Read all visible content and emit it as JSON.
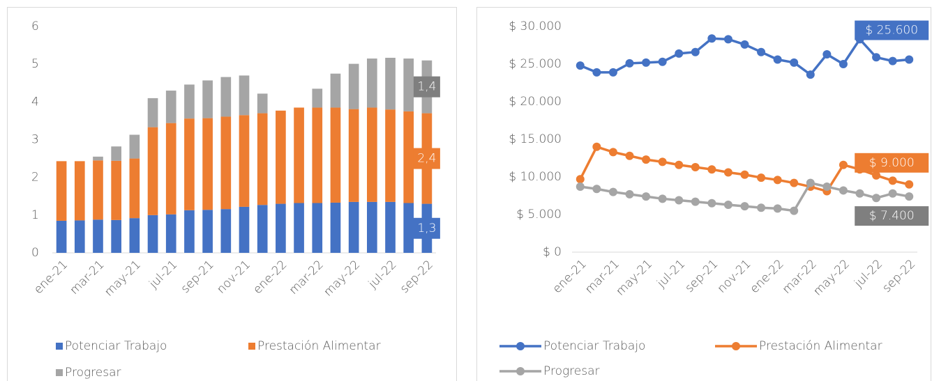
{
  "chart_data": [
    {
      "type": "bar",
      "stacked": true,
      "categories": [
        "ene-21",
        null,
        "mar-21",
        null,
        "may-21",
        null,
        "jul-21",
        null,
        "sep-21",
        null,
        "nov-21",
        null,
        "ene-22",
        null,
        "mar-22",
        null,
        "may-22",
        null,
        "jul-22",
        null,
        "sep-22"
      ],
      "ylim": [
        0,
        6
      ],
      "yticks": [
        0,
        1,
        2,
        3,
        4,
        5,
        6
      ],
      "grid": false,
      "legend": "bottom",
      "series": [
        {
          "name": "Potenciar Trabajo",
          "color": "#4472c4",
          "values": [
            0.85,
            0.86,
            0.88,
            0.87,
            0.92,
            1.0,
            1.02,
            1.13,
            1.14,
            1.16,
            1.22,
            1.27,
            1.3,
            1.32,
            1.32,
            1.33,
            1.35,
            1.35,
            1.35,
            1.32,
            1.3
          ],
          "value_labels": [
            null,
            null,
            null,
            null,
            null,
            null,
            null,
            null,
            null,
            null,
            null,
            null,
            null,
            null,
            null,
            null,
            null,
            null,
            null,
            null,
            "1,3"
          ]
        },
        {
          "name": "Prestación Alimentar",
          "color": "#ed7d31",
          "values": [
            1.58,
            1.57,
            1.57,
            1.57,
            1.58,
            2.33,
            2.42,
            2.43,
            2.43,
            2.45,
            2.43,
            2.43,
            2.47,
            2.53,
            2.53,
            2.52,
            2.46,
            2.5,
            2.45,
            2.43,
            2.4
          ],
          "value_labels": [
            null,
            null,
            null,
            null,
            null,
            null,
            null,
            null,
            null,
            null,
            null,
            null,
            null,
            null,
            null,
            null,
            null,
            null,
            null,
            null,
            "2,4"
          ]
        },
        {
          "name": "Progresar",
          "color": "#a5a5a5",
          "values": [
            0,
            0,
            0.1,
            0.38,
            0.63,
            0.77,
            0.86,
            0.9,
            1.0,
            1.05,
            1.05,
            0.52,
            0,
            0,
            0.5,
            0.9,
            1.2,
            1.3,
            1.37,
            1.4,
            1.4
          ],
          "value_labels": [
            null,
            null,
            null,
            null,
            null,
            null,
            null,
            null,
            null,
            null,
            null,
            null,
            null,
            null,
            null,
            null,
            null,
            null,
            null,
            null,
            "1,4"
          ]
        }
      ]
    },
    {
      "type": "line",
      "categories": [
        "ene-21",
        null,
        "mar-21",
        null,
        "may-21",
        null,
        "jul-21",
        null,
        "sep-21",
        null,
        "nov-21",
        null,
        "ene-22",
        null,
        "mar-22",
        null,
        "may-22",
        null,
        "jul-22",
        null,
        "sep-22"
      ],
      "ylim": [
        0,
        30000
      ],
      "yticks": [
        {
          "value": 0,
          "label": "$ 0"
        },
        {
          "value": 5000,
          "label": "$ 5.000"
        },
        {
          "value": 10000,
          "label": "$ 10.000"
        },
        {
          "value": 15000,
          "label": "$ 15.000"
        },
        {
          "value": 20000,
          "label": "$ 20.000"
        },
        {
          "value": 25000,
          "label": "$ 25.000"
        },
        {
          "value": 30000,
          "label": "$ 30.000"
        }
      ],
      "grid": false,
      "legend": "bottom",
      "series": [
        {
          "name": "Potenciar Trabajo",
          "color": "#4472c4",
          "values": [
            24800,
            23900,
            23900,
            25100,
            25200,
            25300,
            26400,
            26600,
            28400,
            28300,
            27600,
            26600,
            25600,
            25200,
            23600,
            26300,
            25000,
            28300,
            25900,
            25400,
            25600
          ],
          "value_labels": [
            null,
            null,
            null,
            null,
            null,
            null,
            null,
            null,
            null,
            null,
            null,
            null,
            null,
            null,
            null,
            null,
            null,
            null,
            null,
            null,
            "$ 25.600"
          ]
        },
        {
          "name": "Prestación Alimentar",
          "color": "#ed7d31",
          "values": [
            9700,
            14000,
            13300,
            12800,
            12300,
            12000,
            11600,
            11300,
            11000,
            10600,
            10300,
            9900,
            9600,
            9200,
            8700,
            8100,
            11600,
            11000,
            10200,
            9500,
            9000
          ],
          "value_labels": [
            null,
            null,
            null,
            null,
            null,
            null,
            null,
            null,
            null,
            null,
            null,
            null,
            null,
            null,
            null,
            null,
            null,
            null,
            null,
            null,
            "$ 9.000"
          ]
        },
        {
          "name": "Progresar",
          "color": "#a5a5a5",
          "values": [
            8700,
            8400,
            8000,
            7700,
            7400,
            7100,
            6900,
            6700,
            6500,
            6300,
            6100,
            5900,
            5800,
            5500,
            9200,
            8700,
            8200,
            7800,
            7200,
            7800,
            7400
          ],
          "value_labels": [
            null,
            null,
            null,
            null,
            null,
            null,
            null,
            null,
            null,
            null,
            null,
            null,
            null,
            null,
            null,
            null,
            null,
            null,
            null,
            null,
            "$ 7.400"
          ]
        }
      ]
    }
  ]
}
